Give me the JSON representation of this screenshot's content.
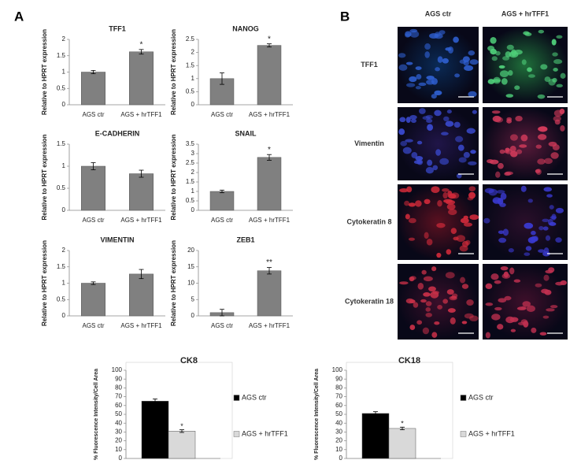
{
  "panel_a_label": "A",
  "panel_b_label": "B",
  "chart_data": [
    {
      "type": "bar",
      "title": "TFF1",
      "ylabel": "Relative to HPRT expression",
      "categories": [
        "AGS ctr",
        "AGS + hrTFF1"
      ],
      "values": [
        1.0,
        1.62
      ],
      "errors": [
        0.05,
        0.07
      ],
      "annotations": [
        null,
        "*"
      ],
      "color": "#808080",
      "ylim": [
        0,
        2
      ],
      "yticks": [
        0,
        0.5,
        1,
        1.5,
        2
      ]
    },
    {
      "type": "bar",
      "title": "NANOG",
      "ylabel": "Relative to HPRT expression",
      "categories": [
        "AGS ctr",
        "AGS + hrTFF1"
      ],
      "values": [
        1.0,
        2.27
      ],
      "errors": [
        0.22,
        0.06
      ],
      "annotations": [
        null,
        "*"
      ],
      "color": "#808080",
      "ylim": [
        0,
        2.5
      ],
      "yticks": [
        0,
        0.5,
        1,
        1.5,
        2,
        2.5
      ]
    },
    {
      "type": "bar",
      "title": "E-CADHERIN",
      "ylabel": "Relative to HPRT expression",
      "categories": [
        "AGS ctr",
        "AGS + hrTFF1"
      ],
      "values": [
        1.0,
        0.83
      ],
      "errors": [
        0.08,
        0.08
      ],
      "color": "#808080",
      "ylim": [
        0,
        1.5
      ],
      "yticks": [
        0,
        0.5,
        1,
        1.5
      ]
    },
    {
      "type": "bar",
      "title": "SNAIL",
      "ylabel": "Relative to HPRT expression",
      "categories": [
        "AGS ctr",
        "AGS + hrTFF1"
      ],
      "values": [
        1.0,
        2.8
      ],
      "errors": [
        0.07,
        0.15
      ],
      "annotations": [
        null,
        "*"
      ],
      "color": "#808080",
      "ylim": [
        0,
        3.5
      ],
      "yticks": [
        0,
        0.5,
        1,
        1.5,
        2,
        2.5,
        3,
        3.5
      ]
    },
    {
      "type": "bar",
      "title": "VIMENTIN",
      "ylabel": "Relative to HPRT expression",
      "categories": [
        "AGS ctr",
        "AGS + hrTFF1"
      ],
      "values": [
        1.0,
        1.28
      ],
      "errors": [
        0.04,
        0.14
      ],
      "color": "#808080",
      "ylim": [
        0,
        2
      ],
      "yticks": [
        0,
        0.5,
        1,
        1.5,
        2
      ]
    },
    {
      "type": "bar",
      "title": "ZEB1",
      "ylabel": "Relative to HPRT expression",
      "categories": [
        "AGS ctr",
        "AGS + hrTFF1"
      ],
      "values": [
        1.0,
        13.8
      ],
      "errors": [
        1.0,
        1.0
      ],
      "annotations": [
        null,
        "**"
      ],
      "color": "#808080",
      "ylim": [
        0,
        20
      ],
      "yticks": [
        0,
        5,
        10,
        15,
        20
      ]
    },
    {
      "type": "bar",
      "title": "CK8",
      "ylabel": "% Fluorescence Intensity/Cell Area",
      "series": [
        {
          "name": "AGS ctr",
          "color": "#000000",
          "values": [
            65
          ],
          "errors": [
            2.5
          ]
        },
        {
          "name": "AGS + hrTFF1",
          "color": "#d9d9d9",
          "values": [
            31
          ],
          "errors": [
            1.5
          ],
          "annotation": "*"
        }
      ],
      "ylim": [
        0,
        100
      ],
      "yticks": [
        0,
        10,
        20,
        30,
        40,
        50,
        60,
        70,
        80,
        90,
        100
      ]
    },
    {
      "type": "bar",
      "title": "CK18",
      "ylabel": "% Fluorescence Intensity/Cell Area",
      "series": [
        {
          "name": "AGS ctr",
          "color": "#000000",
          "values": [
            51
          ],
          "errors": [
            2
          ]
        },
        {
          "name": "AGS + hrTFF1",
          "color": "#d9d9d9",
          "values": [
            34
          ],
          "errors": [
            1.5
          ],
          "annotation": "*"
        }
      ],
      "ylim": [
        0,
        100
      ],
      "yticks": [
        0,
        10,
        20,
        30,
        40,
        50,
        60,
        70,
        80,
        90,
        100
      ]
    }
  ],
  "micrographs": {
    "columns": [
      "AGS ctr",
      "AGS + hrTFF1"
    ],
    "rows": [
      "TFF1",
      "Vimentin",
      "Cytokeratin 8",
      "Cytokeratin 18"
    ]
  }
}
